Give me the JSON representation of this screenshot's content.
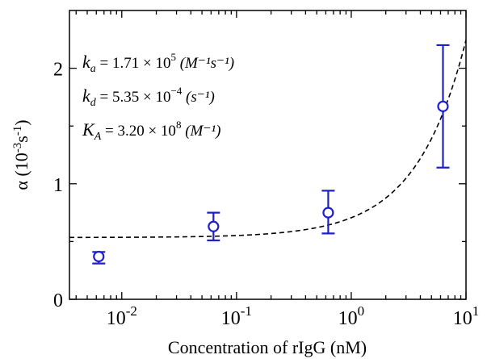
{
  "chart_data": {
    "type": "scatter",
    "xlabel": "Concentration of rIgG (nM)",
    "ylabel": "α (10-3s-1)",
    "xscale": "log",
    "xlim": [
      0.0035,
      10
    ],
    "ylim": [
      0,
      2.5
    ],
    "x_ticks": [
      {
        "value": 0.01,
        "base": "10",
        "exp": "-2"
      },
      {
        "value": 0.1,
        "base": "10",
        "exp": "-1"
      },
      {
        "value": 1,
        "base": "10",
        "exp": "0"
      },
      {
        "value": 10,
        "base": "10",
        "exp": "1"
      }
    ],
    "y_ticks": [
      0,
      1,
      2
    ],
    "y_minor_ticks": [
      0.5,
      1.5
    ],
    "points": [
      {
        "x": 0.0063,
        "y": 0.37,
        "err_low": 0.31,
        "err_high": 0.41
      },
      {
        "x": 0.063,
        "y": 0.63,
        "err_low": 0.51,
        "err_high": 0.75
      },
      {
        "x": 0.63,
        "y": 0.75,
        "err_low": 0.57,
        "err_high": 0.94
      },
      {
        "x": 6.3,
        "y": 1.67,
        "err_low": 1.14,
        "err_high": 2.2
      }
    ],
    "fit": {
      "style": "dashed",
      "description": "α = kd + ka·C",
      "kd_scaled": 0.535,
      "ka_scaled": 0.171
    },
    "annotations": [
      {
        "sym": "k",
        "sub": "a",
        "text": " = 1.71 × 10",
        "exp": "5",
        "unit": "(M⁻¹s⁻¹)"
      },
      {
        "sym": "k",
        "sub": "d",
        "text": " = 5.35 × 10",
        "exp": "−4",
        "unit": "(s⁻¹)"
      },
      {
        "sym": "K",
        "sub": "A",
        "text": " = 3.20 × 10",
        "exp": "8",
        "unit": "(M⁻¹)"
      }
    ],
    "colors": {
      "marker": "#1f1fd0",
      "fit": "#000000",
      "axes": "#000000"
    },
    "grid": false,
    "legend": "none"
  }
}
